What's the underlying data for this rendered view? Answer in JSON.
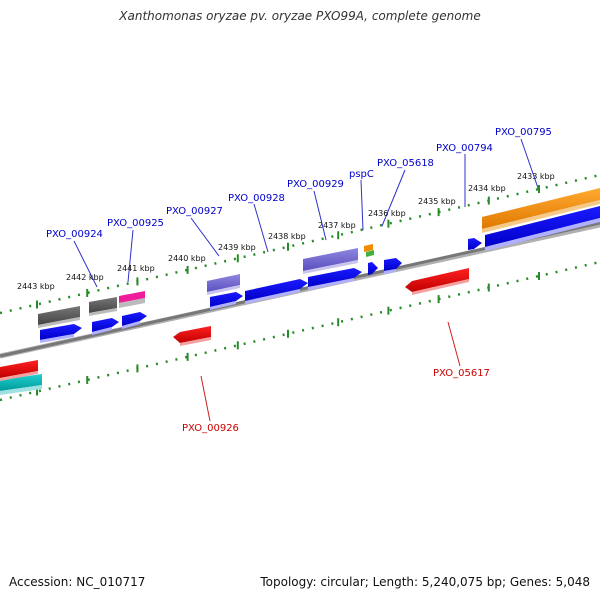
{
  "title": "Xanthomonas oryzae pv. oryzae PXO99A, complete genome",
  "footer": {
    "accession": "Accession: NC_010717",
    "summary": "Topology: circular; Length: 5,240,075 bp; Genes: 5,048"
  },
  "colors": {
    "forward_label": "#0000cc",
    "reverse_label": "#cc0000",
    "backbone": "#888888",
    "tick": "#2a8a2a"
  },
  "scale": {
    "unit": "kbp",
    "ticks": [
      {
        "kbp": 2443,
        "label": "2443 kbp"
      },
      {
        "kbp": 2442,
        "label": "2442 kbp"
      },
      {
        "kbp": 2441,
        "label": "2441 kbp"
      },
      {
        "kbp": 2440,
        "label": "2440 kbp"
      },
      {
        "kbp": 2439,
        "label": "2439 kbp"
      },
      {
        "kbp": 2438,
        "label": "2438 kbp"
      },
      {
        "kbp": 2437,
        "label": "2437 kbp"
      },
      {
        "kbp": 2436,
        "label": "2436 kbp"
      },
      {
        "kbp": 2435,
        "label": "2435 kbp"
      },
      {
        "kbp": 2434,
        "label": "2434 kbp"
      },
      {
        "kbp": 2433,
        "label": "2433 kbp"
      }
    ]
  },
  "labels": [
    {
      "text": "PXO_00924",
      "strand": "forward"
    },
    {
      "text": "PXO_00925",
      "strand": "forward"
    },
    {
      "text": "PXO_00927",
      "strand": "forward"
    },
    {
      "text": "PXO_00928",
      "strand": "forward"
    },
    {
      "text": "PXO_00929",
      "strand": "forward"
    },
    {
      "text": "pspC",
      "strand": "forward"
    },
    {
      "text": "PXO_05618",
      "strand": "forward"
    },
    {
      "text": "PXO_00794",
      "strand": "forward"
    },
    {
      "text": "PXO_00795",
      "strand": "forward"
    },
    {
      "text": "PXO_05617",
      "strand": "reverse"
    },
    {
      "text": "PXO_00926",
      "strand": "reverse"
    }
  ]
}
